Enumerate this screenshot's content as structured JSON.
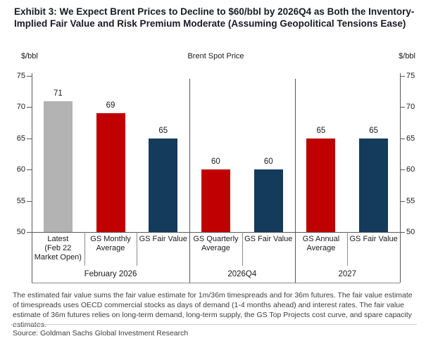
{
  "title": "Exhibit 3: We Expect Brent Prices to Decline to $60/bbl by 2026Q4 as Both the Inventory-Implied Fair Value and Risk Premium Moderate (Assuming Geopolitical Tensions Ease)",
  "chart_data": {
    "type": "bar",
    "title": "Brent Spot Price",
    "y_axis_unit_left": "$/bbl",
    "y_axis_unit_right": "$/bbl",
    "ylim": [
      50,
      75
    ],
    "yticks": [
      50,
      55,
      60,
      65,
      70,
      75
    ],
    "grid": false,
    "legend": "none",
    "palette": {
      "latest_gray": "#b3b3b3",
      "gs_forecast_red": "#c00000",
      "gs_fair_value_navy": "#143a5c",
      "axis_line": "#595959",
      "separator": "#8c8c8c"
    },
    "groups": [
      {
        "label": "February 2026",
        "bars": [
          {
            "category": "Latest (Feb 22 Market Open)",
            "category_lines": [
              "Latest",
              "(Feb 22",
              "Market Open)"
            ],
            "value": 71,
            "color": "#b3b3b3"
          },
          {
            "category": "GS Monthly Average",
            "category_lines": [
              "GS Monthly",
              "Average"
            ],
            "value": 69,
            "color": "#c00000"
          },
          {
            "category": "GS Fair Value",
            "category_lines": [
              "GS Fair Value"
            ],
            "value": 65,
            "color": "#143a5c"
          }
        ]
      },
      {
        "label": "2026Q4",
        "bars": [
          {
            "category": "GS Quarterly Average",
            "category_lines": [
              "GS Quarterly",
              "Average"
            ],
            "value": 60,
            "color": "#c00000"
          },
          {
            "category": "GS Fair Value",
            "category_lines": [
              "GS Fair Value"
            ],
            "value": 60,
            "color": "#143a5c"
          }
        ]
      },
      {
        "label": "2027",
        "bars": [
          {
            "category": "GS Annual Average",
            "category_lines": [
              "GS Annual",
              "Average"
            ],
            "value": 65,
            "color": "#c00000"
          },
          {
            "category": "GS Fair Value",
            "category_lines": [
              "GS Fair Value"
            ],
            "value": 65,
            "color": "#143a5c"
          }
        ]
      }
    ]
  },
  "footnote": "The estimated fair value sums the fair value estimate for 1m/36m timespreads and for 36m futures. The fair value estimate of timespreads uses OECD commercial stocks as days of demand (1-4 months ahead) and interest rates. The fair value estimate of 36m futures relies on long-term demand, long-term supply, the GS Top Projects cost curve, and spare capacity estimates.",
  "source": "Source: Goldman Sachs Global Investment Research"
}
